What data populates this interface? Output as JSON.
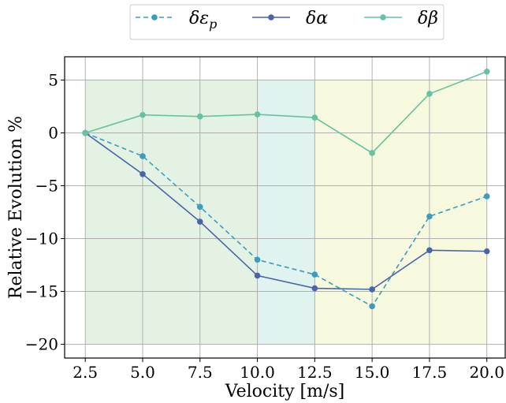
{
  "chart_data": {
    "type": "line",
    "xlabel": "Velocity [m/s]",
    "ylabel": "Relative Evolution %",
    "x": [
      2.5,
      5.0,
      7.5,
      10.0,
      12.5,
      15.0,
      17.5,
      20.0
    ],
    "xlim": [
      1.6,
      20.8
    ],
    "ylim": [
      -21.3,
      7.2
    ],
    "xticks": [
      "2.5",
      "5.0",
      "7.5",
      "10.0",
      "12.5",
      "15.0",
      "17.5",
      "20.0"
    ],
    "yticks": [
      "5",
      "0",
      "−5",
      "−10",
      "−15",
      "−20"
    ],
    "ytick_values": [
      5,
      0,
      -5,
      -10,
      -15,
      -20
    ],
    "grid": true,
    "legend_position": "top-center-outside",
    "series": [
      {
        "name": "δε_p",
        "name_main": "δε",
        "name_sub": "p",
        "color": "#3a9dbf",
        "dashed": true,
        "values": [
          0,
          -2.2,
          -7.0,
          -12.0,
          -13.4,
          -16.4,
          -7.9,
          -6.0
        ]
      },
      {
        "name": "δα",
        "name_main": "δα",
        "color": "#4a64aa",
        "dashed": false,
        "values": [
          0,
          -3.9,
          -8.4,
          -13.5,
          -14.7,
          -14.8,
          -11.1,
          -11.2
        ]
      },
      {
        "name": "δβ",
        "name_main": "δβ",
        "color": "#66c2a0",
        "dashed": false,
        "values": [
          0,
          1.7,
          1.55,
          1.75,
          1.45,
          -1.9,
          3.7,
          5.8
        ]
      }
    ],
    "regions": [
      {
        "x_start": 2.5,
        "x_end": 10.0,
        "y_start": -20,
        "y_end": 5,
        "color": "#e4f2e4"
      },
      {
        "x_start": 10.0,
        "x_end": 12.5,
        "y_start": -20,
        "y_end": 5,
        "color": "#e0f3ee"
      },
      {
        "x_start": 12.5,
        "x_end": 20.0,
        "y_start": -20,
        "y_end": 5,
        "color": "#f6f9de"
      }
    ]
  }
}
